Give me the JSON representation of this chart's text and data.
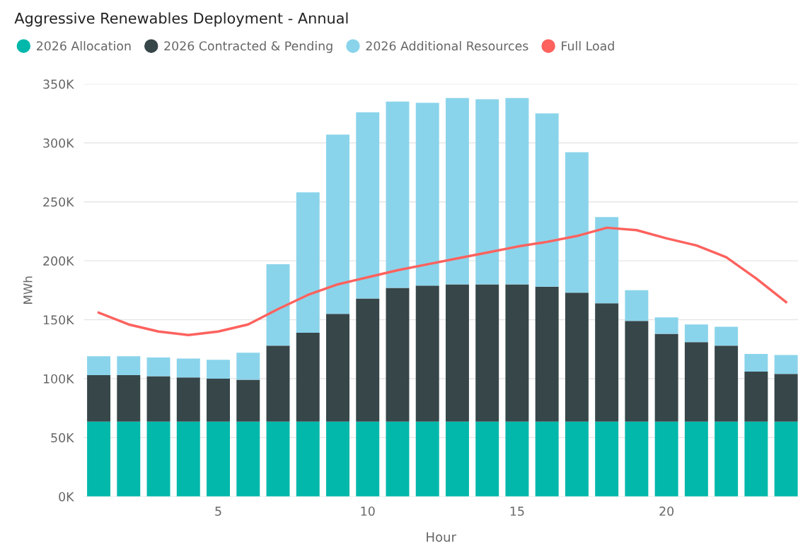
{
  "chart_data": {
    "type": "bar",
    "stacked": true,
    "title": "Aggressive Renewables Deployment - Annual",
    "xlabel": "Hour",
    "ylabel": "MWh",
    "x": [
      1,
      2,
      3,
      4,
      5,
      6,
      7,
      8,
      9,
      10,
      11,
      12,
      13,
      14,
      15,
      16,
      17,
      18,
      19,
      20,
      21,
      22,
      23,
      24
    ],
    "series": [
      {
        "name": "2026 Allocation",
        "color": "#01b8aa",
        "values": [
          63500,
          63500,
          63500,
          63500,
          63500,
          63500,
          63500,
          63500,
          63500,
          63500,
          63500,
          63500,
          63500,
          63500,
          63500,
          63500,
          63500,
          63500,
          63500,
          63500,
          63500,
          63500,
          63500,
          63500
        ]
      },
      {
        "name": "2026 Contracted & Pending",
        "color": "#374649",
        "values": [
          39500,
          39500,
          38500,
          37500,
          36500,
          35500,
          64500,
          75500,
          91500,
          104500,
          113500,
          115500,
          116500,
          116500,
          116500,
          114500,
          109500,
          100500,
          85500,
          74500,
          67500,
          64500,
          42500,
          40500
        ]
      },
      {
        "name": "2026 Additional Resources",
        "color": "#8ad4eb",
        "values": [
          16000,
          16000,
          16000,
          16000,
          16000,
          23000,
          69000,
          119000,
          152000,
          158000,
          158000,
          155000,
          158000,
          157000,
          158000,
          147000,
          119000,
          73000,
          26000,
          14000,
          15000,
          16000,
          15000,
          16000
        ]
      },
      {
        "name": "Full Load",
        "type": "line",
        "color": "#fd625e",
        "marker": "none",
        "line_style": "solid",
        "values": [
          156000,
          146000,
          140000,
          137000,
          140000,
          146000,
          159000,
          171000,
          180000,
          186000,
          192000,
          197000,
          202000,
          207000,
          212000,
          216000,
          221000,
          228000,
          226000,
          219000,
          213000,
          203000,
          185000,
          165000
        ]
      }
    ],
    "xlim": [
      0.5,
      24.4
    ],
    "xticks": [
      5,
      10,
      15,
      20
    ],
    "ylim": [
      0,
      350000
    ],
    "yticks": [
      {
        "value": 0,
        "label": "0K"
      },
      {
        "value": 50000,
        "label": "50K"
      },
      {
        "value": 100000,
        "label": "100K"
      },
      {
        "value": 150000,
        "label": "150K"
      },
      {
        "value": 200000,
        "label": "200K"
      },
      {
        "value": 250000,
        "label": "250K"
      },
      {
        "value": 300000,
        "label": "300K"
      },
      {
        "value": 350000,
        "label": "350K"
      }
    ],
    "grid": "y",
    "legend": "top left"
  }
}
